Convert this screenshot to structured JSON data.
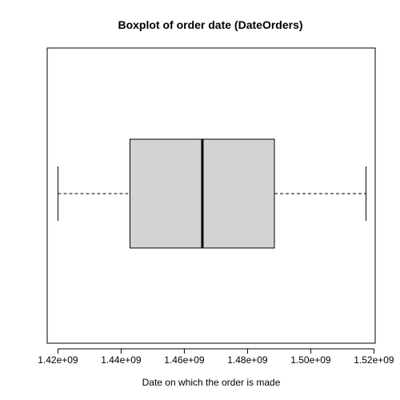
{
  "chart_data": {
    "type": "boxplot",
    "orientation": "horizontal",
    "title": "Boxplot of order date (DateOrders)",
    "xlabel": "Date on which the order is made",
    "ylabel": "",
    "xlim": [
      1416600000.0,
      1520400000.0
    ],
    "ticks": [
      {
        "value": 1420000000.0,
        "label": "1.42e+09"
      },
      {
        "value": 1440000000.0,
        "label": "1.44e+09"
      },
      {
        "value": 1460000000.0,
        "label": "1.46e+09"
      },
      {
        "value": 1480000000.0,
        "label": "1.48e+09"
      },
      {
        "value": 1500000000.0,
        "label": "1.50e+09"
      },
      {
        "value": 1520000000.0,
        "label": "1.52e+09"
      }
    ],
    "box": {
      "whisker_low": 1420000000.0,
      "q1": 1442800000.0,
      "median": 1465700000.0,
      "q3": 1488500000.0,
      "whisker_high": 1517500000.0
    },
    "colors": {
      "box_fill": "#d3d3d3",
      "stroke": "#000000"
    },
    "grid": false
  }
}
